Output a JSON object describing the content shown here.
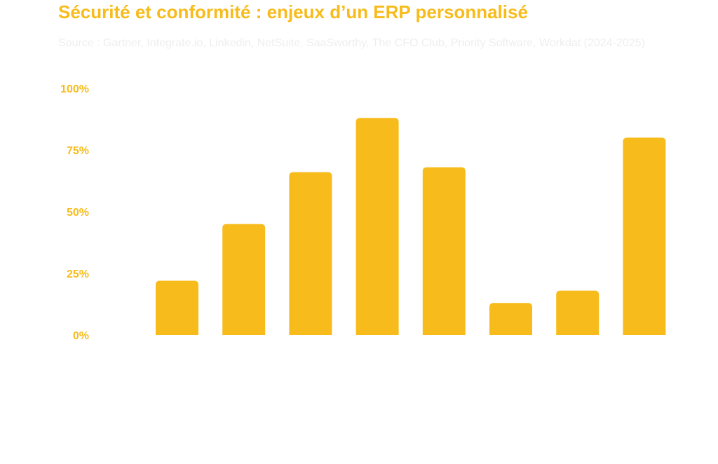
{
  "title": "Sécurité et conformité : enjeux d’un ERP personnalisé",
  "subtitle": "Source : Gartner, Integrate.io, Linkedin, NetSuite, SaaSworthy, The CFO Club, Priority Software, Workdat (2024-2025)",
  "colors": {
    "bar": "#f7bc1c",
    "tick": "#f7bc1c",
    "subtitle": "#eeeeee"
  },
  "chart_data": {
    "type": "bar",
    "categories": [
      "",
      "",
      "",
      "",
      "",
      "",
      "",
      ""
    ],
    "values": [
      22,
      45,
      66,
      88,
      68,
      13,
      18,
      80
    ],
    "y_ticks": [
      "0%",
      "25%",
      "50%",
      "75%",
      "100%"
    ],
    "ylim": [
      0,
      100
    ],
    "grid": false,
    "legend": "none"
  }
}
